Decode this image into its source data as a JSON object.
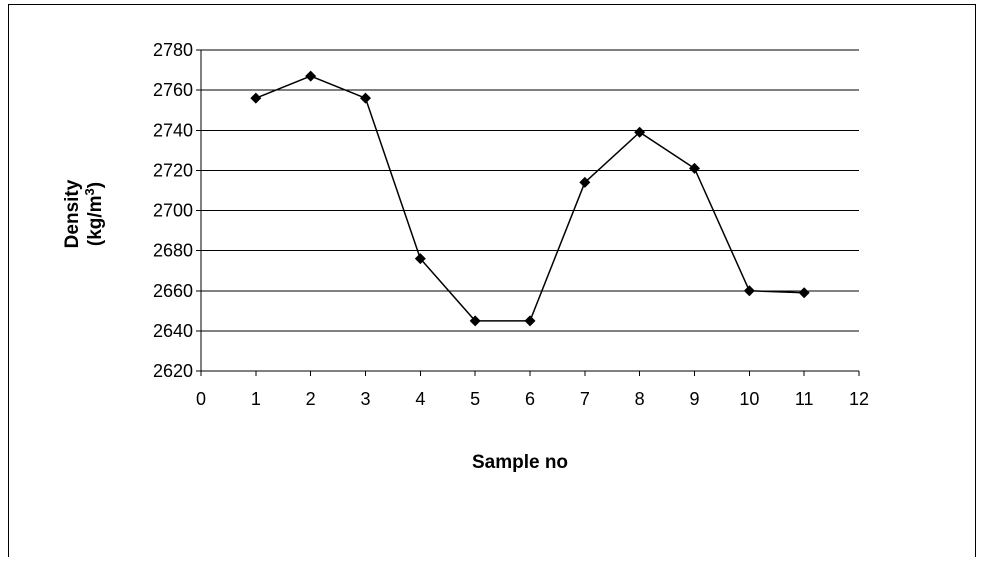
{
  "chart_data": {
    "type": "line",
    "title": "",
    "xlabel": "Sample no",
    "ylabel_line1": "Density",
    "ylabel_line2_prefix": "(kg/m",
    "ylabel_line2_sup": "3",
    "ylabel_line2_suffix": ")",
    "xlim": [
      0,
      12
    ],
    "ylim": [
      2620,
      2780
    ],
    "xticks": [
      "0",
      "1",
      "2",
      "3",
      "4",
      "5",
      "6",
      "7",
      "8",
      "9",
      "10",
      "11",
      "12"
    ],
    "yticks": [
      "2620",
      "2640",
      "2660",
      "2680",
      "2700",
      "2720",
      "2740",
      "2760",
      "2780"
    ],
    "grid": "horizontal",
    "legend": "none",
    "marker": "diamond",
    "color": "#000000",
    "series": [
      {
        "x": [
          1,
          2,
          3,
          4,
          5,
          6,
          7,
          8,
          9,
          10,
          11
        ],
        "values": [
          2756,
          2767,
          2756,
          2676,
          2645,
          2645,
          2714,
          2739,
          2721,
          2660,
          2659
        ]
      }
    ]
  }
}
